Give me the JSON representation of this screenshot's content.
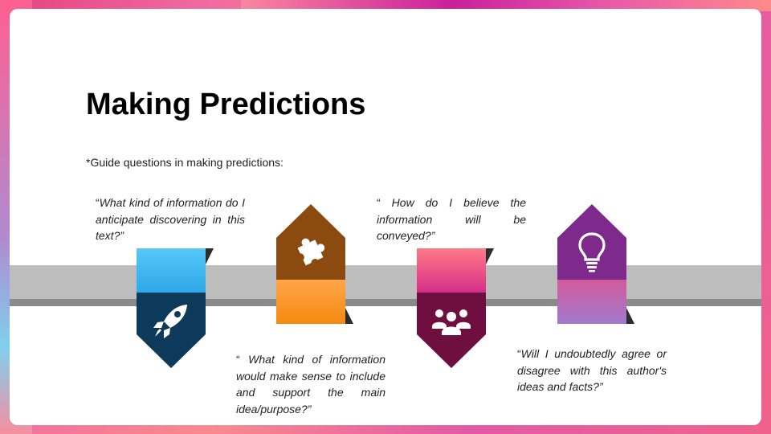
{
  "slide": {
    "title": "Making Predictions",
    "subtitle": "*Guide questions in making predictions:"
  },
  "questions": [
    {
      "text": "What kind of information do I anticipate discovering in this text?”",
      "icon": "rocket-icon",
      "color": "#0d3a5b"
    },
    {
      "text": " What kind of information would make sense to include and support the main idea/purpose?”",
      "icon": "puzzle-icon",
      "color": "#8a4a10"
    },
    {
      "text": " How do I believe the information will be conveyed?”",
      "icon": "people-icon",
      "color": "#6e0f40"
    },
    {
      "text": "Will I undoubtedly agree or disagree with this author's ideas and facts?”",
      "icon": "lightbulb-icon",
      "color": "#7e2a8c"
    }
  ],
  "accent_colors": {
    "blue": "#4fc3f7",
    "orange": "#ff9a2a",
    "pink": "#f24f8e",
    "violet": "#b97fc6"
  }
}
